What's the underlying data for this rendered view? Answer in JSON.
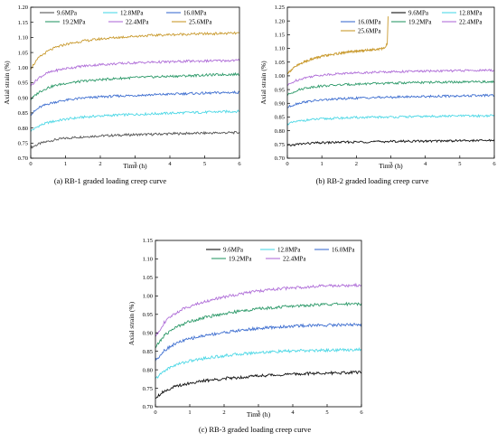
{
  "chart_data": [
    {
      "type": "line",
      "caption": "(a) RB-1 graded loading creep curve",
      "xlabel": "Time (h)",
      "ylabel": "Axial strain (%)",
      "xlim": [
        0,
        6
      ],
      "ylim": [
        0.7,
        1.2
      ],
      "x_ticks": [
        "0",
        "1",
        "2",
        "3",
        "4",
        "5",
        "6"
      ],
      "y_ticks": [
        "0.70",
        "0.75",
        "0.80",
        "0.85",
        "0.90",
        "0.95",
        "1.00",
        "1.05",
        "1.10",
        "1.15",
        "1.20"
      ],
      "legend_position": "top",
      "x": [
        0,
        0.25,
        0.5,
        0.75,
        1,
        1.5,
        2,
        2.5,
        3,
        3.5,
        4,
        4.5,
        5,
        5.5,
        6
      ],
      "series": [
        {
          "name": "9.6MPa",
          "color": "#555555",
          "values": [
            0.735,
            0.748,
            0.756,
            0.762,
            0.766,
            0.771,
            0.774,
            0.776,
            0.778,
            0.779,
            0.781,
            0.782,
            0.783,
            0.784,
            0.785
          ]
        },
        {
          "name": "12.8MPa",
          "color": "#4fd8e6",
          "values": [
            0.79,
            0.808,
            0.818,
            0.824,
            0.829,
            0.836,
            0.84,
            0.843,
            0.845,
            0.847,
            0.849,
            0.851,
            0.852,
            0.854,
            0.855
          ]
        },
        {
          "name": "16.0MPa",
          "color": "#3f6fd0",
          "values": [
            0.845,
            0.868,
            0.88,
            0.887,
            0.892,
            0.899,
            0.903,
            0.906,
            0.908,
            0.91,
            0.912,
            0.914,
            0.915,
            0.917,
            0.918
          ]
        },
        {
          "name": "19.2MPa",
          "color": "#2e9a6a",
          "values": [
            0.895,
            0.92,
            0.934,
            0.942,
            0.948,
            0.955,
            0.96,
            0.964,
            0.967,
            0.969,
            0.971,
            0.973,
            0.975,
            0.977,
            0.978
          ]
        },
        {
          "name": "22.4MPa",
          "color": "#b06fd8",
          "values": [
            0.94,
            0.968,
            0.983,
            0.991,
            0.997,
            1.005,
            1.01,
            1.013,
            1.016,
            1.018,
            1.019,
            1.021,
            1.022,
            1.023,
            1.024
          ]
        },
        {
          "name": "25.6MPa",
          "color": "#c99a2e",
          "values": [
            0.998,
            1.035,
            1.055,
            1.068,
            1.077,
            1.088,
            1.095,
            1.1,
            1.104,
            1.107,
            1.109,
            1.111,
            1.112,
            1.113,
            1.114
          ]
        }
      ]
    },
    {
      "type": "line",
      "caption": "(b) RB-2 graded loading creep curve",
      "xlabel": "Time (h)",
      "ylabel": "Axial strain (%)",
      "xlim": [
        0,
        6
      ],
      "ylim": [
        0.7,
        1.25
      ],
      "x_ticks": [
        "0",
        "1",
        "2",
        "3",
        "4",
        "5",
        "6"
      ],
      "y_ticks": [
        "0.70",
        "0.75",
        "0.80",
        "0.85",
        "0.90",
        "0.95",
        "1.00",
        "1.05",
        "1.10",
        "1.15",
        "1.20",
        "1.25"
      ],
      "legend_position": "top",
      "x": [
        0,
        0.25,
        0.5,
        0.75,
        1,
        1.5,
        2,
        2.5,
        3,
        3.5,
        4,
        4.5,
        5,
        5.5,
        6
      ],
      "series": [
        {
          "name": "9.6MPa",
          "color": "#111111",
          "values": [
            0.745,
            0.75,
            0.753,
            0.755,
            0.756,
            0.758,
            0.759,
            0.76,
            0.761,
            0.762,
            0.762,
            0.763,
            0.764,
            0.764,
            0.765
          ]
        },
        {
          "name": "12.8MPa",
          "color": "#4fd8e6",
          "values": [
            0.825,
            0.833,
            0.838,
            0.841,
            0.843,
            0.846,
            0.848,
            0.849,
            0.85,
            0.851,
            0.852,
            0.853,
            0.854,
            0.854,
            0.855
          ]
        },
        {
          "name": "16.0MPa",
          "color": "#3f6fd0",
          "values": [
            0.885,
            0.898,
            0.905,
            0.909,
            0.912,
            0.916,
            0.919,
            0.921,
            0.922,
            0.924,
            0.925,
            0.926,
            0.927,
            0.928,
            0.929
          ]
        },
        {
          "name": "19.2MPa",
          "color": "#2e9a6a",
          "values": [
            0.93,
            0.946,
            0.955,
            0.96,
            0.963,
            0.967,
            0.97,
            0.972,
            0.973,
            0.975,
            0.976,
            0.977,
            0.977,
            0.978,
            0.978
          ]
        },
        {
          "name": "22.4MPa",
          "color": "#b06fd8",
          "values": [
            0.965,
            0.983,
            0.993,
            0.999,
            1.003,
            1.008,
            1.011,
            1.013,
            1.015,
            1.016,
            1.017,
            1.018,
            1.019,
            1.02,
            1.02
          ]
        },
        {
          "name": "25.6MPa",
          "color": "#c99a2e",
          "x": [
            0,
            0.25,
            0.5,
            0.75,
            1,
            1.5,
            2,
            2.5,
            2.8,
            2.85,
            2.9,
            2.92
          ],
          "values": [
            1.01,
            1.035,
            1.052,
            1.063,
            1.071,
            1.082,
            1.09,
            1.096,
            1.1,
            1.105,
            1.12,
            1.215
          ]
        }
      ]
    },
    {
      "type": "line",
      "caption": "(c) RB-3 graded loading creep curve",
      "xlabel": "Time (h)",
      "ylabel": "Axial strain (%)",
      "xlim": [
        0,
        6
      ],
      "ylim": [
        0.7,
        1.15
      ],
      "x_ticks": [
        "0",
        "1",
        "2",
        "3",
        "4",
        "5",
        "6"
      ],
      "y_ticks": [
        "0.70",
        "0.75",
        "0.80",
        "0.85",
        "0.90",
        "0.95",
        "1.00",
        "1.05",
        "1.10",
        "1.15"
      ],
      "legend_position": "top",
      "x": [
        0,
        0.25,
        0.5,
        0.75,
        1,
        1.5,
        2,
        2.5,
        3,
        3.5,
        4,
        4.5,
        5,
        5.5,
        6
      ],
      "series": [
        {
          "name": "9.6MPa",
          "color": "#111111",
          "values": [
            0.725,
            0.742,
            0.752,
            0.759,
            0.764,
            0.771,
            0.776,
            0.78,
            0.784,
            0.786,
            0.788,
            0.79,
            0.791,
            0.792,
            0.793
          ]
        },
        {
          "name": "12.8MPa",
          "color": "#4fd8e6",
          "values": [
            0.775,
            0.797,
            0.81,
            0.818,
            0.824,
            0.832,
            0.838,
            0.843,
            0.847,
            0.849,
            0.851,
            0.852,
            0.853,
            0.854,
            0.855
          ]
        },
        {
          "name": "16.0MPa",
          "color": "#3f6fd0",
          "values": [
            0.825,
            0.852,
            0.867,
            0.877,
            0.884,
            0.894,
            0.901,
            0.907,
            0.912,
            0.915,
            0.918,
            0.92,
            0.921,
            0.922,
            0.922
          ]
        },
        {
          "name": "19.2MPa",
          "color": "#2e9a6a",
          "values": [
            0.86,
            0.892,
            0.91,
            0.922,
            0.931,
            0.943,
            0.952,
            0.959,
            0.965,
            0.969,
            0.972,
            0.975,
            0.977,
            0.978,
            0.979
          ]
        },
        {
          "name": "22.4MPa",
          "color": "#b06fd8",
          "values": [
            0.89,
            0.927,
            0.948,
            0.962,
            0.972,
            0.986,
            0.997,
            1.006,
            1.013,
            1.018,
            1.022,
            1.025,
            1.027,
            1.028,
            1.029
          ]
        }
      ]
    }
  ]
}
